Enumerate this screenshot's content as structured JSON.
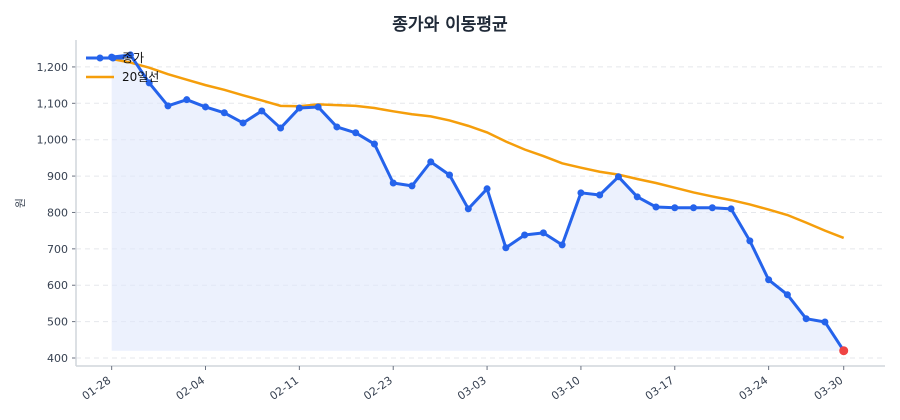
{
  "chart_data": {
    "type": "line",
    "title": "종가와 이동평균",
    "xlabel": "",
    "ylabel": "원",
    "ylim": [
      378,
      1274
    ],
    "xlim": [
      -1.9,
      41.2
    ],
    "grid": "horizontal dashed",
    "legend_position": "top-left",
    "x": [
      0,
      1,
      2,
      3,
      4,
      5,
      6,
      7,
      8,
      9,
      10,
      11,
      12,
      13,
      14,
      15,
      16,
      17,
      18,
      19,
      20,
      21,
      22,
      23,
      24,
      25,
      26,
      27,
      28,
      29,
      30,
      31,
      32,
      33,
      34,
      35,
      36,
      37,
      38,
      39
    ],
    "x_ticks": [
      {
        "index": 0,
        "label": "01-28"
      },
      {
        "index": 5,
        "label": "02-04"
      },
      {
        "index": 10,
        "label": "02-11"
      },
      {
        "index": 15,
        "label": "02-23"
      },
      {
        "index": 20,
        "label": "03-03"
      },
      {
        "index": 25,
        "label": "03-10"
      },
      {
        "index": 30,
        "label": "03-17"
      },
      {
        "index": 35,
        "label": "03-24"
      },
      {
        "index": 39,
        "label": "03-30"
      }
    ],
    "y_ticks": [
      400,
      500,
      600,
      700,
      800,
      900,
      1000,
      1100,
      1200
    ],
    "y_tick_labels": [
      "400",
      "500",
      "600",
      "700",
      "800",
      "900",
      "1,000",
      "1,100",
      "1,200"
    ],
    "series": [
      {
        "name": "종가",
        "color": "#2563eb",
        "marker": "circle",
        "fill": "#e0e8fb",
        "last_point_color": "#ef4444",
        "values": [
          1227,
          1233,
          1156,
          1093,
          1110,
          1090,
          1074,
          1046,
          1079,
          1032,
          1087,
          1090,
          1035,
          1019,
          988,
          881,
          873,
          939,
          903,
          810,
          865,
          703,
          738,
          744,
          711,
          854,
          848,
          898,
          843,
          815,
          813,
          813,
          813,
          810,
          722,
          615,
          574,
          508,
          499,
          420
        ]
      },
      {
        "name": "20일선",
        "color": "#f59e0b",
        "values": [
          1222,
          1212,
          1198,
          1180,
          1165,
          1150,
          1137,
          1122,
          1108,
          1093,
          1092,
          1097,
          1095,
          1093,
          1087,
          1078,
          1070,
          1064,
          1053,
          1038,
          1020,
          995,
          973,
          955,
          935,
          923,
          912,
          904,
          892,
          881,
          868,
          855,
          844,
          834,
          822,
          808,
          793,
          772,
          750,
          730
        ]
      }
    ]
  }
}
